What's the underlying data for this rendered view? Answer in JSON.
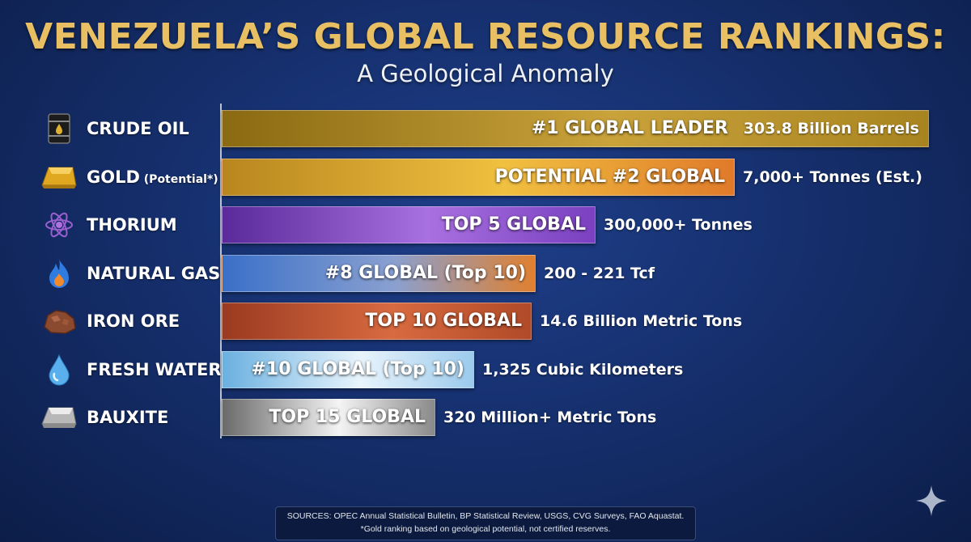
{
  "title": "VENEZUELA’S GLOBAL RESOURCE RANKINGS:",
  "subtitle": "A Geological Anomaly",
  "chart_data": {
    "type": "bar",
    "orientation": "horizontal",
    "title": "VENEZUELA’S GLOBAL RESOURCE RANKINGS:",
    "subtitle": "A Geological Anomaly",
    "categories": [
      "CRUDE OIL",
      "GOLD",
      "THORIUM",
      "NATURAL GAS",
      "IRON ORE",
      "FRESH WATER",
      "BAUXITE"
    ],
    "rows": [
      {
        "label": "CRUDE OIL",
        "note": "",
        "icon": "oil-barrel-icon",
        "rank_text": "#1 GLOBAL LEADER",
        "value_text": "303.8 Billion Barrels",
        "bar_fraction": 1.0,
        "colors": [
          "#8a6a12",
          "#c9a23a",
          "#a88420"
        ]
      },
      {
        "label": "GOLD",
        "note": "(Potential*)",
        "icon": "gold-bar-icon",
        "rank_text": "POTENTIAL #2 GLOBAL",
        "value_text": "7,000+ Tonnes (Est.)",
        "bar_fraction": 0.725,
        "colors": [
          "#b8861e",
          "#f0c040",
          "#e07a2a"
        ]
      },
      {
        "label": "THORIUM",
        "note": "",
        "icon": "atom-icon",
        "rank_text": "TOP 5 GLOBAL",
        "value_text": "300,000+ Tonnes",
        "bar_fraction": 0.528,
        "colors": [
          "#5a2a9a",
          "#a870e0",
          "#7a40c0"
        ]
      },
      {
        "label": "NATURAL GAS",
        "note": "",
        "icon": "flame-icon",
        "rank_text": "#8 GLOBAL (Top 10)",
        "value_text": "200 - 221 Tcf",
        "bar_fraction": 0.443,
        "colors": [
          "#3a70c8",
          "#8aa0d0",
          "#e08030"
        ]
      },
      {
        "label": "IRON ORE",
        "note": "",
        "icon": "ore-rock-icon",
        "rank_text": "TOP 10 GLOBAL",
        "value_text": "14.6 Billion Metric Tons",
        "bar_fraction": 0.437,
        "colors": [
          "#9a3a20",
          "#d86a40",
          "#b04a28"
        ]
      },
      {
        "label": "FRESH WATER",
        "note": "",
        "icon": "water-drop-icon",
        "rank_text": "#10 GLOBAL (Top 10)",
        "value_text": "1,325 Cubic Kilometers",
        "bar_fraction": 0.356,
        "colors": [
          "#6ab0e0",
          "#e8f4fc",
          "#9ccaec"
        ]
      },
      {
        "label": "BAUXITE",
        "note": "",
        "icon": "metal-ingot-icon",
        "rank_text": "TOP 15 GLOBAL",
        "value_text": "320 Million+ Metric Tons",
        "bar_fraction": 0.301,
        "colors": [
          "#6a6a6a",
          "#f4f4f4",
          "#8a8a8a"
        ]
      }
    ]
  },
  "sources": {
    "line1": "SOURCES: OPEC Annual Statistical Bulletin, BP Statistical Review, USGS, CVG Surveys, FAO Aquastat.",
    "line2": "*Gold ranking based on geological potential, not certified reserves."
  },
  "colors": {
    "background": "#16306e",
    "title": "#e8c063"
  }
}
